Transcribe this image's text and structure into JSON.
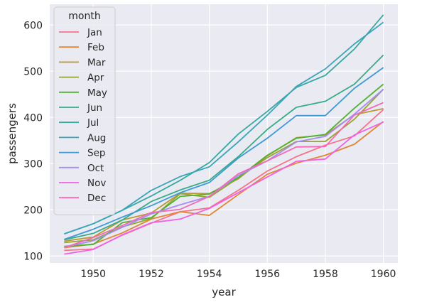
{
  "chart_data": {
    "type": "line",
    "title": "",
    "xlabel": "year",
    "ylabel": "passengers",
    "xlim": [
      1948.5,
      1960.5
    ],
    "ylim": [
      85,
      645
    ],
    "x_ticks": [
      1950,
      1952,
      1954,
      1956,
      1958,
      1960
    ],
    "y_ticks": [
      100,
      200,
      300,
      400,
      500,
      600
    ],
    "grid": true,
    "legend": {
      "title": "month",
      "placement": "top-left"
    },
    "colors": {
      "background": "#eaeaf2",
      "grid": "#ffffff",
      "axis_text": "#262626"
    },
    "x": [
      1949,
      1950,
      1951,
      1952,
      1953,
      1954,
      1955,
      1956,
      1957,
      1958,
      1959,
      1960
    ],
    "series": [
      {
        "name": "Jan",
        "color": "#f77189",
        "values": [
          112,
          115,
          145,
          171,
          196,
          204,
          242,
          284,
          315,
          340,
          360,
          417
        ]
      },
      {
        "name": "Feb",
        "color": "#e18632",
        "values": [
          118,
          126,
          150,
          180,
          196,
          188,
          233,
          277,
          301,
          318,
          342,
          391
        ]
      },
      {
        "name": "Mar",
        "color": "#bb9832",
        "values": [
          132,
          141,
          178,
          193,
          236,
          235,
          267,
          317,
          356,
          362,
          406,
          419
        ]
      },
      {
        "name": "Apr",
        "color": "#97a431",
        "values": [
          129,
          135,
          163,
          181,
          235,
          227,
          269,
          313,
          348,
          348,
          396,
          461
        ]
      },
      {
        "name": "May",
        "color": "#50b131",
        "values": [
          121,
          125,
          172,
          183,
          229,
          234,
          270,
          318,
          355,
          363,
          420,
          472
        ]
      },
      {
        "name": "Jun",
        "color": "#35ac86",
        "values": [
          135,
          149,
          178,
          218,
          243,
          264,
          315,
          374,
          422,
          435,
          472,
          535
        ]
      },
      {
        "name": "Jul",
        "color": "#38a8a0",
        "values": [
          148,
          170,
          199,
          230,
          264,
          302,
          364,
          413,
          465,
          491,
          548,
          622
        ]
      },
      {
        "name": "Aug",
        "color": "#3aa5b8",
        "values": [
          148,
          170,
          199,
          242,
          272,
          293,
          347,
          405,
          467,
          505,
          559,
          606
        ]
      },
      {
        "name": "Sep",
        "color": "#3e9ad5",
        "values": [
          136,
          158,
          184,
          209,
          237,
          259,
          312,
          355,
          404,
          404,
          463,
          508
        ]
      },
      {
        "name": "Oct",
        "color": "#a48cf4",
        "values": [
          119,
          133,
          162,
          191,
          211,
          229,
          274,
          306,
          347,
          359,
          407,
          461
        ]
      },
      {
        "name": "Nov",
        "color": "#ef62e4",
        "values": [
          104,
          114,
          146,
          172,
          180,
          203,
          237,
          271,
          305,
          310,
          362,
          390
        ]
      },
      {
        "name": "Dec",
        "color": "#f569b6",
        "values": [
          118,
          140,
          166,
          194,
          201,
          229,
          278,
          306,
          336,
          337,
          405,
          432
        ]
      }
    ]
  }
}
